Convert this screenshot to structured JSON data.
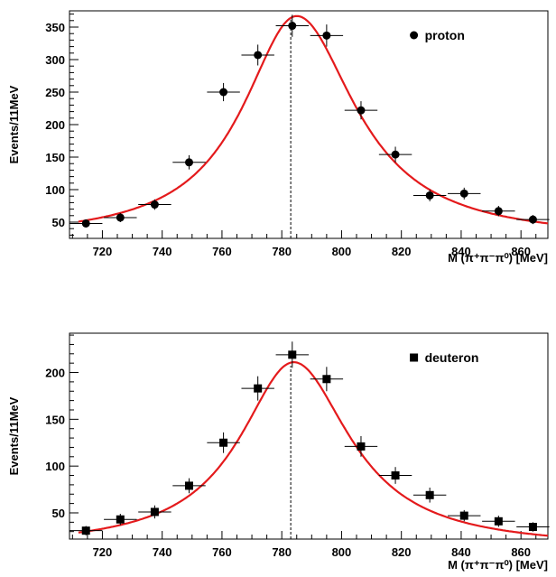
{
  "colors": {
    "fit": "#e41a1c",
    "marker": "#000000",
    "frame": "#000000"
  },
  "chart_data": [
    {
      "type": "scatter",
      "title": "",
      "xlabel": "M (π⁺π⁻π⁰) [MeV]",
      "ylabel": "Events/11MeV",
      "xlim": [
        709,
        869
      ],
      "ylim": [
        25,
        375
      ],
      "xticks": [
        720,
        740,
        760,
        780,
        800,
        820,
        840,
        860
      ],
      "yticks": [
        50,
        100,
        150,
        200,
        250,
        300,
        350
      ],
      "marker": "circle",
      "bin_halfwidth": 5.5,
      "legend": {
        "label": "proton",
        "position": "top-right"
      },
      "vline": 783,
      "fit": {
        "peak_x": 785,
        "peak_y": 367,
        "baseline": 22,
        "width_left": 22,
        "width_right": 24
      },
      "points": [
        {
          "x": 714.5,
          "y": 48,
          "err": 6
        },
        {
          "x": 726,
          "y": 57,
          "err": 7
        },
        {
          "x": 737.5,
          "y": 77,
          "err": 8
        },
        {
          "x": 749,
          "y": 142,
          "err": 11
        },
        {
          "x": 760.5,
          "y": 250,
          "err": 14
        },
        {
          "x": 772,
          "y": 307,
          "err": 16
        },
        {
          "x": 783.5,
          "y": 352,
          "err": 17
        },
        {
          "x": 795,
          "y": 337,
          "err": 17
        },
        {
          "x": 806.5,
          "y": 222,
          "err": 14
        },
        {
          "x": 818,
          "y": 154,
          "err": 12
        },
        {
          "x": 829.5,
          "y": 91,
          "err": 9
        },
        {
          "x": 841,
          "y": 94,
          "err": 9
        },
        {
          "x": 852.5,
          "y": 67,
          "err": 8
        },
        {
          "x": 864,
          "y": 54,
          "err": 7
        }
      ]
    },
    {
      "type": "scatter",
      "title": "",
      "xlabel": "M (π⁺π⁻π⁰) [MeV]",
      "ylabel": "Events/11MeV",
      "xlim": [
        709,
        869
      ],
      "ylim": [
        22,
        242
      ],
      "xticks": [
        720,
        740,
        760,
        780,
        800,
        820,
        840,
        860
      ],
      "yticks": [
        50,
        100,
        150,
        200
      ],
      "marker": "square",
      "bin_halfwidth": 5.5,
      "legend": {
        "label": "deuteron",
        "position": "top-right"
      },
      "vline": 783,
      "fit": {
        "peak_x": 784,
        "peak_y": 211,
        "baseline": 12,
        "width_left": 22,
        "width_right": 23
      },
      "points": [
        {
          "x": 714.5,
          "y": 31,
          "err": 5
        },
        {
          "x": 726,
          "y": 43,
          "err": 6
        },
        {
          "x": 737.5,
          "y": 51,
          "err": 7
        },
        {
          "x": 749,
          "y": 79,
          "err": 8
        },
        {
          "x": 760.5,
          "y": 125,
          "err": 11
        },
        {
          "x": 772,
          "y": 183,
          "err": 13
        },
        {
          "x": 783.5,
          "y": 219,
          "err": 14
        },
        {
          "x": 795,
          "y": 193,
          "err": 13
        },
        {
          "x": 806.5,
          "y": 121,
          "err": 11
        },
        {
          "x": 818,
          "y": 90,
          "err": 9
        },
        {
          "x": 829.5,
          "y": 69,
          "err": 8
        },
        {
          "x": 841,
          "y": 47,
          "err": 6
        },
        {
          "x": 852.5,
          "y": 41,
          "err": 6
        },
        {
          "x": 864,
          "y": 35,
          "err": 5
        }
      ]
    }
  ]
}
